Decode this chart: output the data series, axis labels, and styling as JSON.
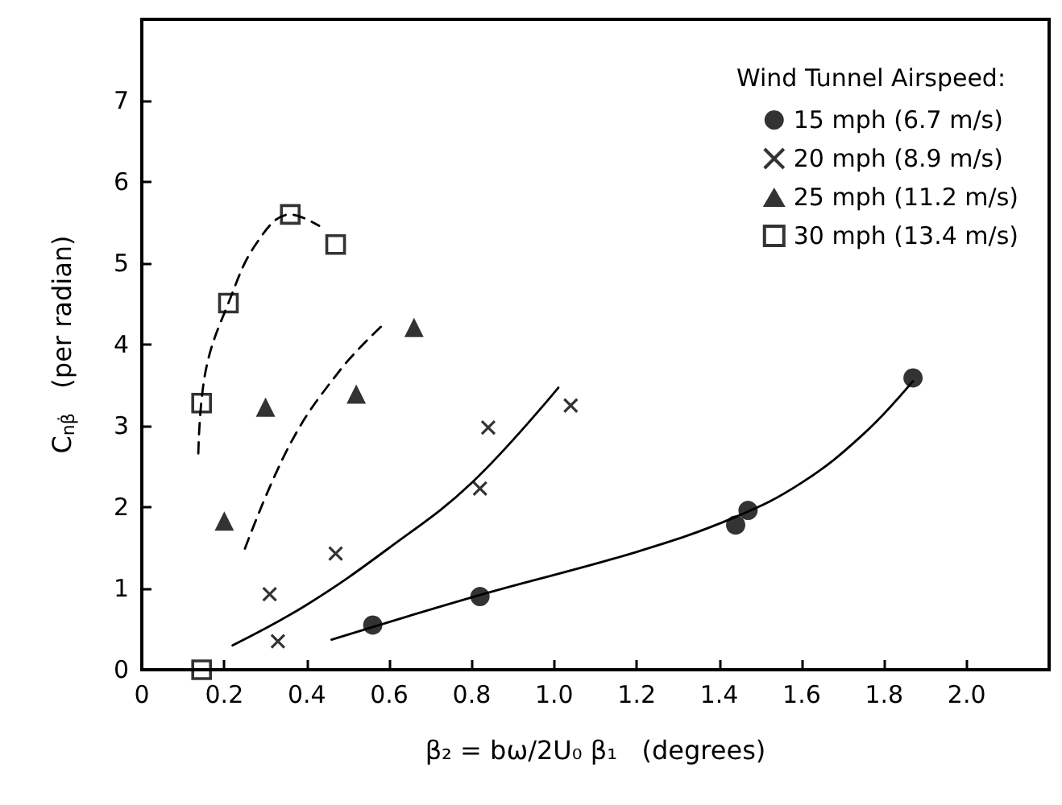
{
  "chart_data": {
    "type": "scatter",
    "xlabel": "β₂ = bω/2U₀ β₁   (degrees)",
    "ylabel": "C$_{nβ̇}$   (per radian)",
    "legend_title": "Wind Tunnel Airspeed:",
    "xlim": [
      0,
      2.2
    ],
    "xticks": [
      0,
      0.2,
      0.4,
      0.6,
      0.8,
      {
        "value": 1,
        "label": "1.0"
      },
      1.2,
      1.4,
      1.6,
      1.8,
      {
        "value": 2,
        "label": "2.0"
      }
    ],
    "ylim": [
      0,
      8
    ],
    "yticks": [
      0,
      1,
      2,
      3,
      4,
      5,
      6,
      7,
      {
        "value": 8,
        "label": null
      }
    ],
    "grid": false,
    "legend": "top right",
    "series": [
      {
        "name": "15 mph (6.7 m/s)",
        "color": "#000000",
        "marker": "circle",
        "x": [
          0.56,
          0.82,
          1.44,
          1.47,
          1.87
        ],
        "values": [
          0.55,
          0.9,
          1.78,
          1.96,
          3.59
        ]
      },
      {
        "name": "20 mph (8.9 m/s)",
        "color": "#000000",
        "marker": "cross",
        "x": [
          0.31,
          0.33,
          0.47,
          0.82,
          0.84,
          1.04
        ],
        "values": [
          0.93,
          0.35,
          1.43,
          2.23,
          2.98,
          3.25
        ]
      },
      {
        "name": "25 mph (11.2 m/s)",
        "color": "#000000",
        "marker": "triangle",
        "x": [
          0.2,
          0.3,
          0.52,
          0.66
        ],
        "values": [
          1.83,
          3.23,
          3.39,
          4.21
        ]
      },
      {
        "name": "30 mph (13.4 m/s)",
        "color": "#000000",
        "marker": "square",
        "x": [
          0.145,
          0.145,
          0.21,
          0.36,
          0.47
        ],
        "values": [
          0,
          3.28,
          4.51,
          5.6,
          5.23
        ]
      },
      {
        "type": "line",
        "color": "#000000",
        "line_style": "solid",
        "marker": "none",
        "x": [
          0.46,
          0.82,
          1.2,
          1.44,
          1.6,
          1.75,
          1.87
        ],
        "values": [
          0.37,
          0.92,
          1.45,
          1.88,
          2.3,
          2.9,
          3.55
        ]
      },
      {
        "type": "line",
        "color": "#000000",
        "line_style": "solid",
        "marker": "none",
        "x": [
          0.22,
          0.4,
          0.6,
          0.8,
          1.01
        ],
        "values": [
          0.3,
          0.8,
          1.5,
          2.3,
          3.47
        ]
      },
      {
        "type": "line",
        "color": "#000000",
        "line_style": "dashed",
        "marker": "none",
        "x": [
          0.25,
          0.36,
          0.48,
          0.58
        ],
        "values": [
          1.49,
          2.78,
          3.68,
          4.22
        ]
      },
      {
        "type": "line",
        "color": "#000000",
        "line_style": "dashed",
        "marker": "none",
        "x": [
          0.137,
          0.155,
          0.21,
          0.28,
          0.36,
          0.43
        ],
        "values": [
          2.66,
          3.68,
          4.51,
          5.26,
          5.6,
          5.46
        ]
      }
    ]
  }
}
